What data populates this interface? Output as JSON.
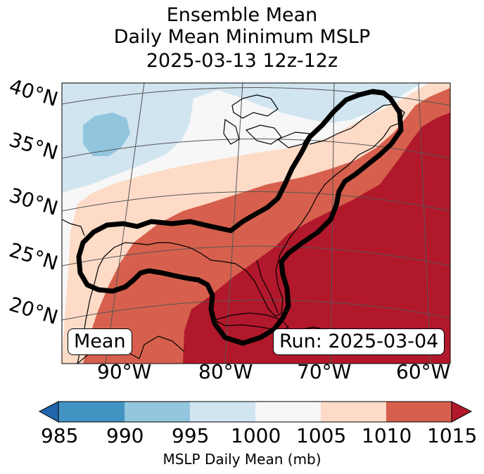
{
  "title": {
    "line1": "Ensemble Mean",
    "line2": "Daily Mean Minimum MSLP",
    "line3": "2025-03-13 12z-12z"
  },
  "latitude_labels": [
    "40°N",
    "35°N",
    "30°N",
    "25°N",
    "20°N"
  ],
  "longitude_labels": [
    "90°W",
    "80°W",
    "70°W",
    "60°W"
  ],
  "boxes": {
    "left": "Mean",
    "right": "Run: 2025-03-04"
  },
  "colorbar": {
    "label": "MSLP Daily Mean (mb)",
    "ticks": [
      "985",
      "990",
      "995",
      "1000",
      "1005",
      "1010",
      "1015"
    ],
    "colors": [
      "#2166ac",
      "#4393c3",
      "#92c5de",
      "#d1e5f0",
      "#f7f7f7",
      "#fddbc7",
      "#d6604d",
      "#b2182b"
    ]
  },
  "colors": {
    "outline": "#000000",
    "coast": "#000000",
    "grid": "#555555"
  }
}
